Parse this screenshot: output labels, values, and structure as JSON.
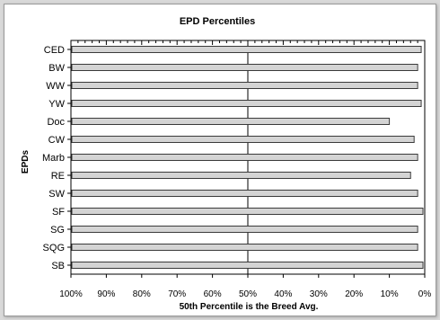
{
  "chart_data": {
    "type": "bar",
    "orientation": "horizontal",
    "title": "EPD Percentiles",
    "xlabel": "50th Percentile is the Breed Avg.",
    "ylabel": "EPDs",
    "categories": [
      "CED",
      "BW",
      "WW",
      "YW",
      "Doc",
      "CW",
      "Marb",
      "RE",
      "SW",
      "SF",
      "SG",
      "SQG",
      "SB"
    ],
    "values": [
      1,
      2,
      2,
      1,
      10,
      3,
      2,
      4,
      2,
      0.5,
      2,
      2,
      0.5
    ],
    "xlim": [
      100,
      0
    ],
    "x_ticks": [
      "100%",
      "90%",
      "80%",
      "70%",
      "60%",
      "50%",
      "40%",
      "30%",
      "20%",
      "10%",
      "0%"
    ],
    "reference_line": 50,
    "grid": false,
    "colors": {
      "bar_fill": "#d4d4d4",
      "bar_stroke": "#3a3a3a",
      "axis": "#000000",
      "reference_line": "#000000"
    }
  }
}
